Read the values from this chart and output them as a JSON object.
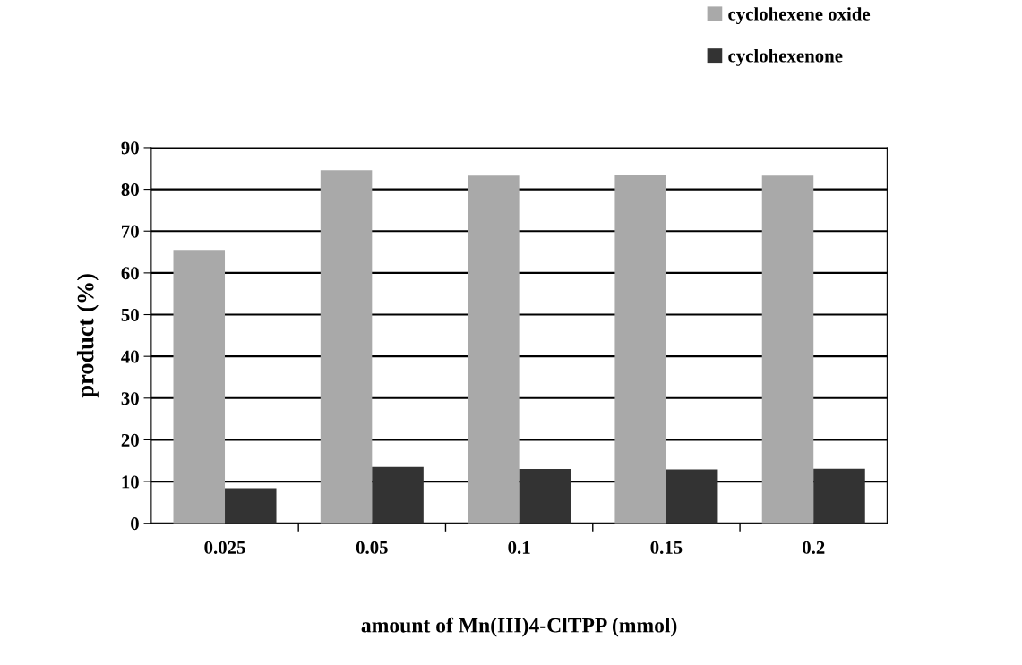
{
  "chart_data": {
    "type": "bar",
    "xlabel": "amount of Mn(III)4-ClTPP (mmol)",
    "ylabel": "product (%)",
    "categories": [
      "0.025",
      "0.05",
      "0.1",
      "0.15",
      "0.2"
    ],
    "series": [
      {
        "name": "cyclohexene oxide",
        "color": "#a9a9a9",
        "values": [
          65.5,
          84.6,
          83.3,
          83.5,
          83.3
        ]
      },
      {
        "name": "cyclohexenone",
        "color": "#333333",
        "values": [
          8.4,
          13.5,
          13.0,
          12.9,
          13.1
        ]
      }
    ],
    "ylim": [
      0,
      90
    ],
    "yticks": [
      0,
      10,
      20,
      30,
      40,
      50,
      60,
      70,
      80,
      90
    ],
    "grid": "y",
    "legend": "top right"
  }
}
